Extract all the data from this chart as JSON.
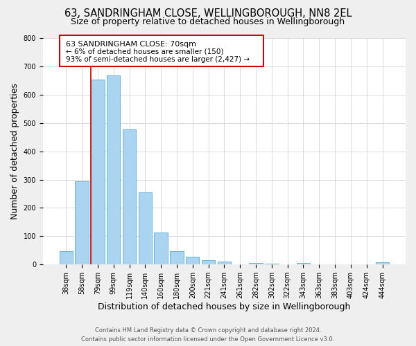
{
  "title": "63, SANDRINGHAM CLOSE, WELLINGBOROUGH, NN8 2EL",
  "subtitle": "Size of property relative to detached houses in Wellingborough",
  "xlabel": "Distribution of detached houses by size in Wellingborough",
  "ylabel": "Number of detached properties",
  "bar_labels": [
    "38sqm",
    "58sqm",
    "79sqm",
    "99sqm",
    "119sqm",
    "140sqm",
    "160sqm",
    "180sqm",
    "200sqm",
    "221sqm",
    "241sqm",
    "261sqm",
    "282sqm",
    "302sqm",
    "322sqm",
    "343sqm",
    "363sqm",
    "383sqm",
    "403sqm",
    "424sqm",
    "444sqm"
  ],
  "bar_heights": [
    48,
    295,
    652,
    668,
    478,
    254,
    113,
    48,
    28,
    15,
    10,
    0,
    5,
    3,
    0,
    5,
    0,
    0,
    0,
    0,
    7
  ],
  "bar_color": "#aad4f0",
  "bar_edge_color": "#5aaad0",
  "ylim": [
    0,
    800
  ],
  "yticks": [
    0,
    100,
    200,
    300,
    400,
    500,
    600,
    700,
    800
  ],
  "marker_color": "#cc0000",
  "annotation_title": "63 SANDRINGHAM CLOSE: 70sqm",
  "annotation_line1": "← 6% of detached houses are smaller (150)",
  "annotation_line2": "93% of semi-detached houses are larger (2,427) →",
  "footer_line1": "Contains HM Land Registry data © Crown copyright and database right 2024.",
  "footer_line2": "Contains public sector information licensed under the Open Government Licence v3.0.",
  "bg_color": "#efefef",
  "plot_bg_color": "#ffffff",
  "title_fontsize": 10.5,
  "subtitle_fontsize": 9,
  "axis_label_fontsize": 9,
  "tick_fontsize": 7,
  "footer_fontsize": 6,
  "annotation_fontsize": 8
}
